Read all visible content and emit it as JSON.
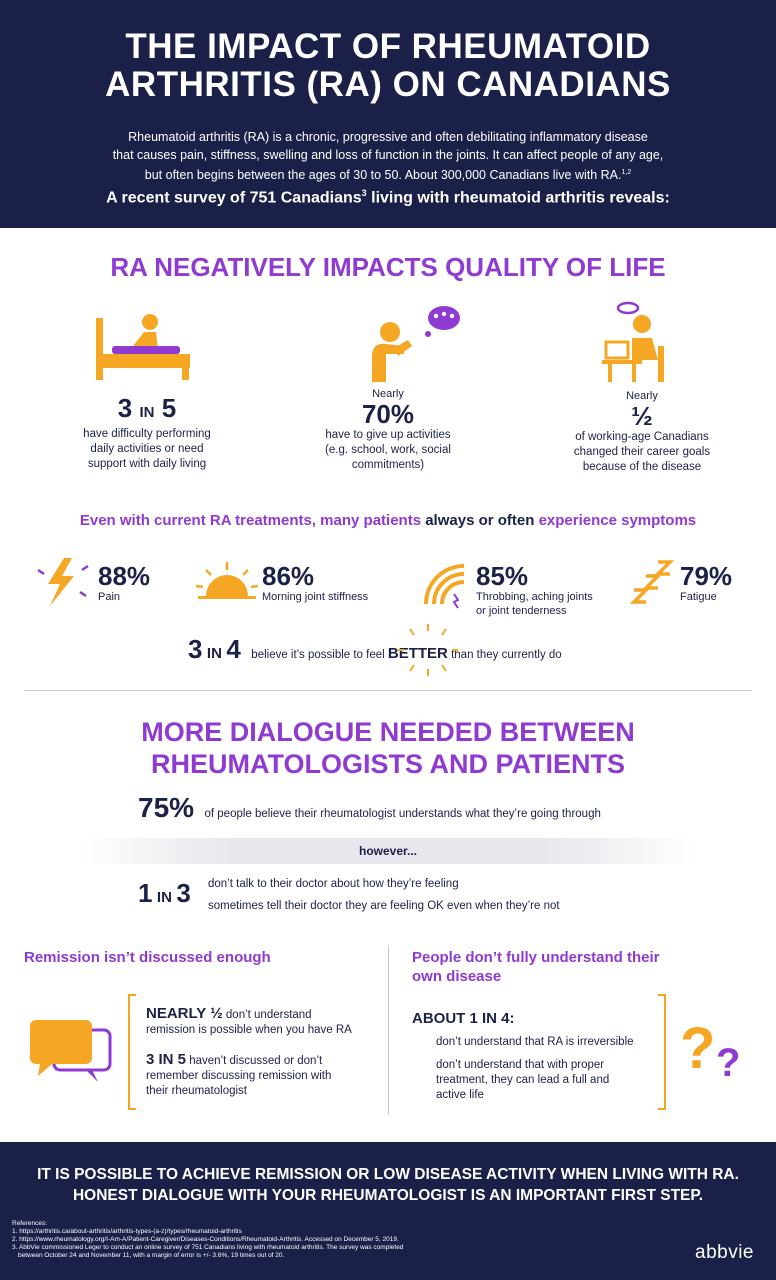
{
  "header": {
    "title_line1": "THE IMPACT OF RHEUMATOID",
    "title_line2": "ARTHRITIS (RA) ON CANADIANS",
    "intro_line1": "Rheumatoid arthritis (RA) is a chronic, progressive and often debilitating inflammatory disease",
    "intro_line2": "that causes pain, stiffness, swelling and loss of function in the joints. It can affect people of any age,",
    "intro_line3": "but often begins between the ages of 30 to 50. About 300,000 Canadians live with RA.",
    "intro_sup": "1,2",
    "survey_pre": "A recent survey of 751 Canadians",
    "survey_sup": "3",
    "survey_post": " living with rheumatoid arthritis reveals:"
  },
  "quality": {
    "title": "RA NEGATIVELY IMPACTS QUALITY OF LIFE",
    "stats": [
      {
        "num": "3",
        "mid": "IN",
        "den": "5",
        "pre": "",
        "desc1": "have difficulty performing",
        "desc2": "daily activities or need",
        "desc3": "support with daily living",
        "desc4": ""
      },
      {
        "pre": "Nearly",
        "big": "70%",
        "desc1": "have to give up activities",
        "desc2": "(e.g. school, work, social",
        "desc3": "commitments)"
      },
      {
        "pre": "Nearly",
        "big": "½",
        "desc1": "of working-age Canadians",
        "desc2": "changed their career goals",
        "desc3": "because of the disease"
      }
    ]
  },
  "symptoms": {
    "heading_pre": "Even with current RA treatments, many patients ",
    "heading_em": "always or often",
    "heading_post": " experience symptoms",
    "items": [
      {
        "pct": "88%",
        "label1": "Pain",
        "label2": ""
      },
      {
        "pct": "86%",
        "label1": "Morning joint stiffness",
        "label2": ""
      },
      {
        "pct": "85%",
        "label1": "Throbbing, aching joints",
        "label2": "or joint tenderness"
      },
      {
        "pct": "79%",
        "label1": "Fatigue",
        "label2": ""
      }
    ],
    "better": {
      "num": "3",
      "mid": "IN",
      "den": "4",
      "text_pre": "believe it’s possible to feel ",
      "text_em": "BETTER",
      "text_post": " than they currently do"
    }
  },
  "dialogue": {
    "title_line1": "MORE DIALOGUE NEEDED BETWEEN",
    "title_line2": "RHEUMATOLOGISTS AND PATIENTS",
    "stat75": "75%",
    "stat75_text": "of people believe their rheumatologist understands what they’re going through",
    "however": "however...",
    "one_in_three": {
      "num": "1",
      "mid": "IN",
      "den": "3",
      "line1": "don’t talk to their doctor about how they’re feeling",
      "line2": "sometimes tell their doctor they are feeling OK even when they’re not"
    }
  },
  "remission": {
    "heading": "Remission isn’t discussed enough",
    "item1_bold": "NEARLY ½",
    "item1_text": " don’t understand",
    "item1_text2": "remission is possible when you have RA",
    "item2_bold": "3 IN 5",
    "item2_text": " haven’t discussed or don’t",
    "item2_text2": "remember discussing remission with",
    "item2_text3": "their rheumatologist"
  },
  "understand": {
    "heading1": "People don’t fully understand their",
    "heading2": "own disease",
    "lead": "ABOUT 1 IN 4:",
    "item1": "don’t understand that RA is irreversible",
    "item2a": "don’t understand that with proper",
    "item2b": "treatment, they can lead a full and",
    "item2c": "active life"
  },
  "footer": {
    "msg1": "IT IS POSSIBLE TO ACHIEVE REMISSION OR LOW DISEASE ACTIVITY WHEN LIVING WITH RA.",
    "msg2": "HONEST DIALOGUE WITH YOUR RHEUMATOLOGIST IS AN IMPORTANT FIRST STEP.",
    "refs_title": "References:",
    "ref1": "1. https://arthritis.ca/about-arthritis/arthritis-types-(a-z)/types/rheumatoid-arthritis",
    "ref2": "2. https://www.rheumatology.org/I-Am-A/Patient-Caregiver/Diseases-Conditions/Rheumatoid-Arthritis. Accessed on December 5, 2019.",
    "ref3a": "3. AbbVie commissioned Leger to conduct an online survey of 751 Canadians living with rheumatoid arthritis. The survey was completed",
    "ref3b": "between October 24 and November 11, with a margin of error is +/- 3.6%, 19 times out of 20.",
    "logo": "abbvie"
  },
  "colors": {
    "navy": "#1a2048",
    "purple": "#8f3ad0",
    "orange": "#f5a623",
    "text": "#1b2148"
  }
}
